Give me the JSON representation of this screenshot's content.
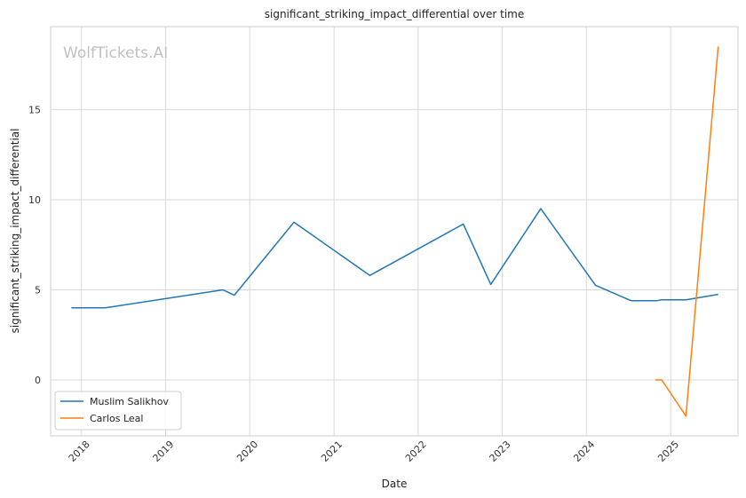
{
  "watermark": "WolfTickets.AI",
  "chart_data": {
    "type": "line",
    "title": "significant_striking_impact_differential over time",
    "xlabel": "Date",
    "ylabel": "significant_striking_impact_differential",
    "xlim": [
      "2017-08-20",
      "2025-10-20"
    ],
    "ylim": [
      -3.1,
      19.6
    ],
    "x_ticks": [
      "2018",
      "2019",
      "2020",
      "2021",
      "2022",
      "2023",
      "2024",
      "2025"
    ],
    "y_ticks": [
      0,
      5,
      10,
      15
    ],
    "grid": true,
    "legend_position": "lower-left",
    "series": [
      {
        "name": "Muslim Salikhov",
        "color": "#1f77b4",
        "points": [
          {
            "x": "2017-11-18",
            "y": 4.0
          },
          {
            "x": "2018-04-14",
            "y": 4.0
          },
          {
            "x": "2019-09-07",
            "y": 5.0
          },
          {
            "x": "2019-10-26",
            "y": 4.7
          },
          {
            "x": "2020-07-11",
            "y": 8.75
          },
          {
            "x": "2021-06-05",
            "y": 5.8
          },
          {
            "x": "2022-07-16",
            "y": 8.65
          },
          {
            "x": "2022-11-12",
            "y": 5.3
          },
          {
            "x": "2023-06-17",
            "y": 9.5
          },
          {
            "x": "2024-02-10",
            "y": 5.25
          },
          {
            "x": "2024-07-13",
            "y": 4.4
          },
          {
            "x": "2024-11-02",
            "y": 4.4
          },
          {
            "x": "2024-11-23",
            "y": 4.45
          },
          {
            "x": "2025-03-08",
            "y": 4.45
          },
          {
            "x": "2025-07-26",
            "y": 4.75
          }
        ]
      },
      {
        "name": "Carlos Leal",
        "color": "#ff7f0e",
        "points": [
          {
            "x": "2024-10-26",
            "y": 0.0
          },
          {
            "x": "2024-11-23",
            "y": 0.0
          },
          {
            "x": "2025-03-08",
            "y": -2.0
          },
          {
            "x": "2025-07-26",
            "y": 18.5
          }
        ]
      }
    ]
  }
}
